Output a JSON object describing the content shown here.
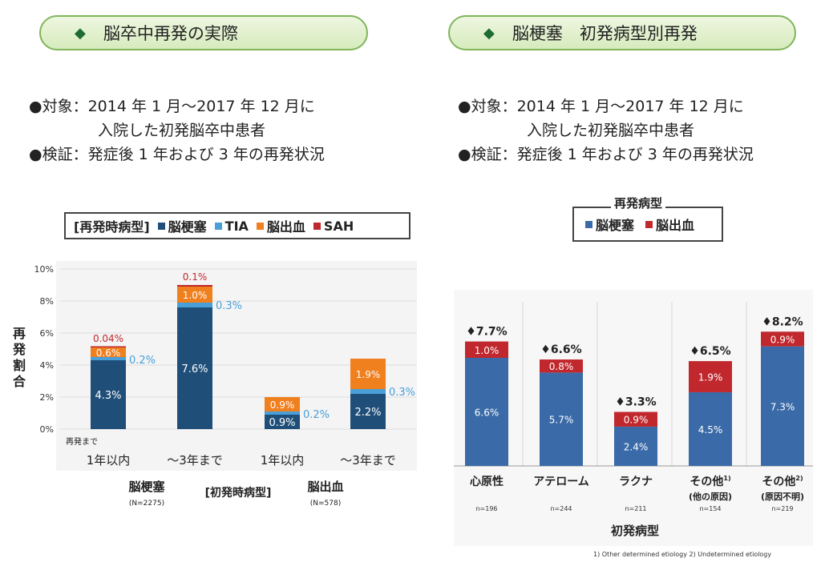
{
  "header": {
    "left_title": "脳卒中再発の実際",
    "right_title": "脳梗塞　初発病型別再発",
    "diamond": "◆"
  },
  "left_info": {
    "line1": "●対象：2014 年 1 月～2017 年 12 月に",
    "line2": "入院した初発脳卒中患者",
    "line3": "●検証：発症後 1 年および 3 年の再発状況"
  },
  "right_info": {
    "line1": "●対象：2014 年 1 月～2017 年 12 月に",
    "line2": "入院した初発脳卒中患者",
    "line3": "●検証：発症後 1 年および 3 年の再発状況"
  },
  "left_legend": {
    "title": "[再発時病型]",
    "items": [
      {
        "label": "脳梗塞",
        "color": "#1f4e79"
      },
      {
        "label": "TIA",
        "color": "#4a9fd8"
      },
      {
        "label": "脳出血",
        "color": "#f07f1e"
      },
      {
        "label": "SAH",
        "color": "#c0282d"
      }
    ]
  },
  "right_legend": {
    "title": "再発病型",
    "items": [
      {
        "label": "脳梗塞",
        "color": "#3a6ba8"
      },
      {
        "label": "脳出血",
        "color": "#c0282d"
      }
    ]
  },
  "chart_data": [
    {
      "type": "bar",
      "stacked": true,
      "ylabel": "再発割合",
      "ylim": [
        0,
        10
      ],
      "yticks": [
        "0%",
        "2%",
        "4%",
        "6%",
        "8%",
        "10%"
      ],
      "categories": [
        "1年以内",
        "～3年まで",
        "1年以内",
        "～3年まで"
      ],
      "category_prefix": "再発まで",
      "groups": [
        {
          "label": "脳梗塞",
          "n": "(N=2275)"
        },
        {
          "label": "脳出血",
          "n": "(N=578)"
        }
      ],
      "group_axis_label": "[初発時病型]",
      "series": [
        {
          "name": "脳梗塞",
          "values": [
            4.3,
            7.6,
            0.9,
            2.2
          ],
          "labels": [
            "4.3%",
            "7.6%",
            "0.9%",
            "2.2%"
          ]
        },
        {
          "name": "TIA",
          "values": [
            0.2,
            0.3,
            0.2,
            0.3
          ],
          "labels": [
            "0.2%",
            "0.3%",
            "0.2%",
            "0.3%"
          ]
        },
        {
          "name": "脳出血",
          "values": [
            0.6,
            1.0,
            0.9,
            1.9
          ],
          "labels": [
            "0.6%",
            "1.0%",
            "0.9%",
            "1.9%"
          ]
        },
        {
          "name": "SAH",
          "values": [
            0.04,
            0.1,
            0,
            0
          ],
          "labels": [
            "0.04%",
            "0.1%",
            "",
            ""
          ]
        }
      ]
    },
    {
      "type": "bar",
      "stacked": true,
      "xlabel": "初発病型",
      "ylim": [
        0,
        8.8
      ],
      "categories": [
        "心原性",
        "アテローム",
        "ラクナ",
        "その他",
        "その他"
      ],
      "category_superscripts": [
        "",
        "",
        "",
        "1)",
        "2)"
      ],
      "category_sublabels": [
        "",
        "",
        "",
        "(他の原因)",
        "(原因不明)"
      ],
      "n": [
        "n=196",
        "n=244",
        "n=211",
        "n=154",
        "n=219"
      ],
      "totals": [
        "♦7.7%",
        "♦6.6%",
        "♦3.3%",
        "♦6.5%",
        "♦8.2%"
      ],
      "series": [
        {
          "name": "脳梗塞",
          "values": [
            6.6,
            5.7,
            2.4,
            4.5,
            7.3
          ],
          "labels": [
            "6.6%",
            "5.7%",
            "2.4%",
            "4.5%",
            "7.3%"
          ]
        },
        {
          "name": "脳出血",
          "values": [
            1.0,
            0.8,
            0.9,
            1.9,
            0.9
          ],
          "labels": [
            "1.0%",
            "0.8%",
            "0.9%",
            "1.9%",
            "0.9%"
          ]
        }
      ],
      "footnote": "1) Other determined etiology  2) Undetermined etiology"
    }
  ]
}
